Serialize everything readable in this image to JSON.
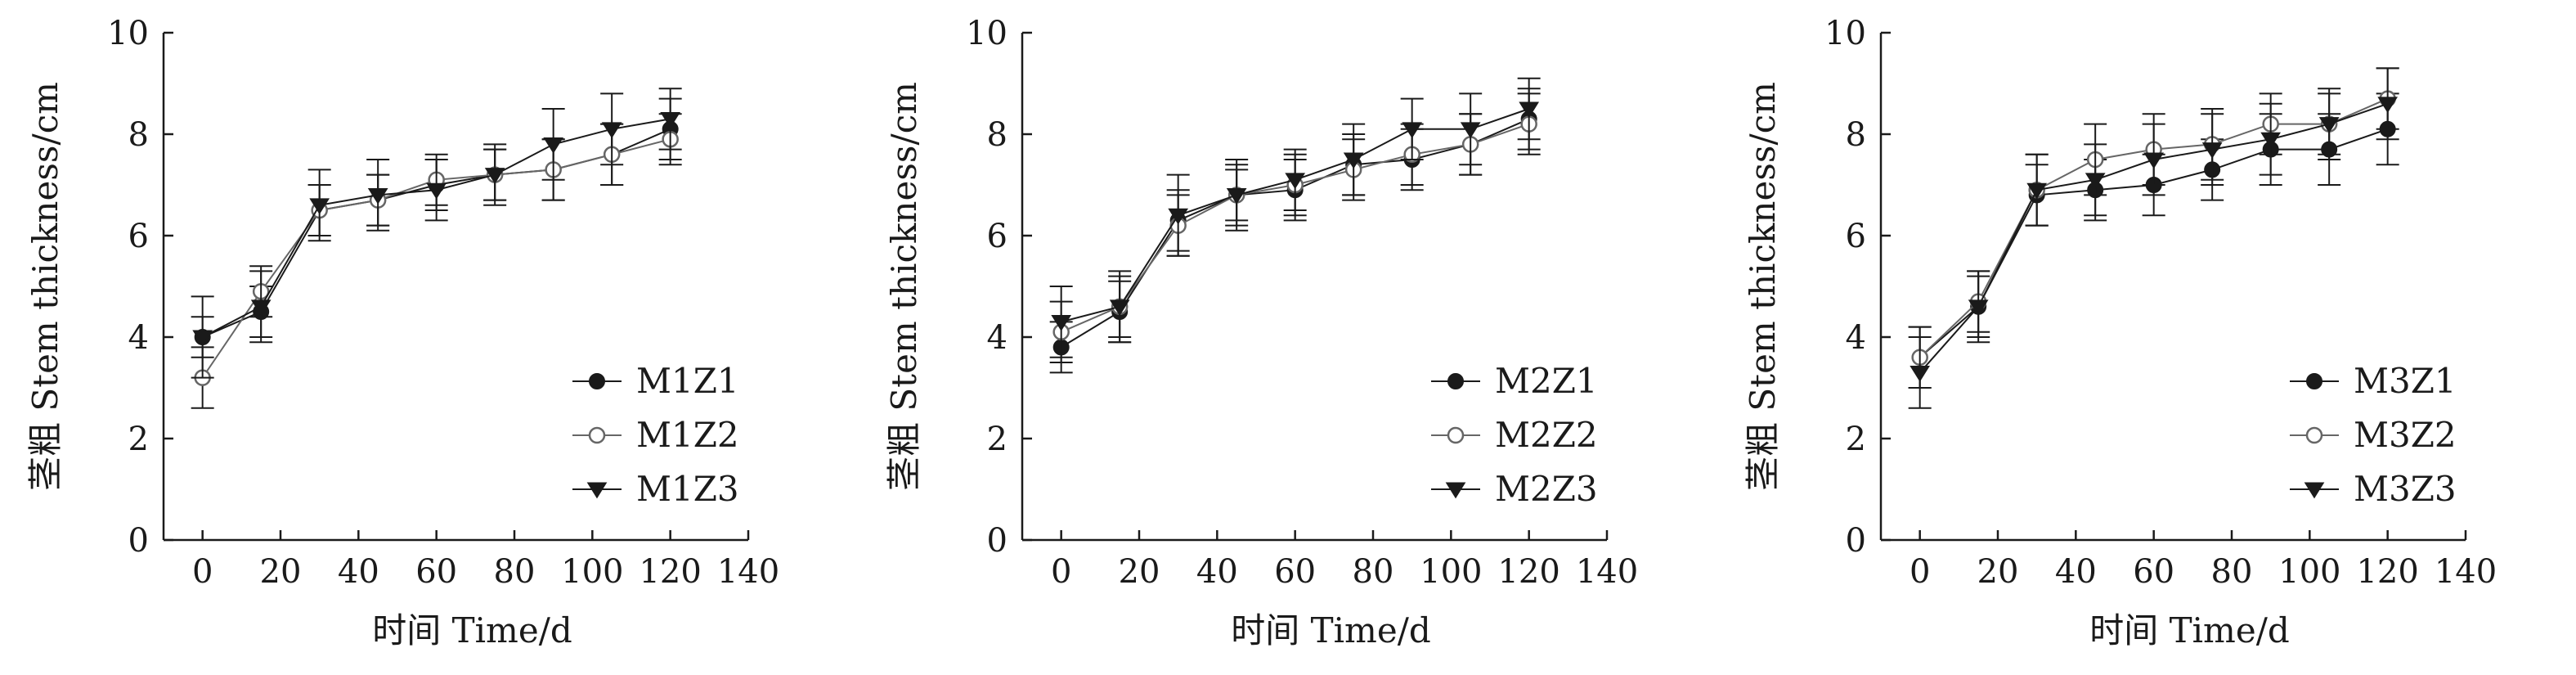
{
  "chart_data": [
    {
      "type": "line",
      "xlabel": "时间 Time/d",
      "ylabel": "茎粗 Stem thickness/cm",
      "xlim": [
        -10,
        140
      ],
      "ylim": [
        0,
        10
      ],
      "xticks": [
        0,
        20,
        40,
        60,
        80,
        100,
        120,
        140
      ],
      "yticks": [
        0,
        2,
        4,
        6,
        8,
        10
      ],
      "xtick_labels": [
        "0",
        "20",
        "40",
        "60",
        "80",
        "100",
        "120",
        "140"
      ],
      "ytick_labels": [
        "0",
        "2",
        "4",
        "6",
        "8",
        "10"
      ],
      "legend": "bottom-right",
      "grid": false,
      "x": [
        0,
        15,
        30,
        45,
        60,
        75,
        90,
        105,
        120
      ],
      "series": [
        {
          "name": "M1Z1",
          "marker": "filled-circle",
          "color": "#1a1a1a",
          "values": [
            4.0,
            4.5,
            6.5,
            6.7,
            7.0,
            7.2,
            7.3,
            7.6,
            8.1
          ],
          "errors": [
            0.4,
            0.5,
            0.5,
            0.5,
            0.5,
            0.5,
            0.6,
            0.6,
            0.6
          ]
        },
        {
          "name": "M1Z2",
          "marker": "open-circle",
          "color": "#666666",
          "values": [
            3.2,
            4.9,
            6.5,
            6.7,
            7.1,
            7.2,
            7.3,
            7.6,
            7.9
          ],
          "errors": [
            0.6,
            0.5,
            0.5,
            0.5,
            0.5,
            0.5,
            0.6,
            0.6,
            0.5
          ]
        },
        {
          "name": "M1Z3",
          "marker": "filled-triangle-down",
          "color": "#1a1a1a",
          "values": [
            4.0,
            4.6,
            6.6,
            6.8,
            6.9,
            7.2,
            7.8,
            8.1,
            8.3
          ],
          "errors": [
            0.8,
            0.7,
            0.7,
            0.7,
            0.6,
            0.6,
            0.7,
            0.7,
            0.6
          ]
        }
      ]
    },
    {
      "type": "line",
      "xlabel": "时间 Time/d",
      "ylabel": "茎粗 Stem thickness/cm",
      "xlim": [
        -10,
        140
      ],
      "ylim": [
        0,
        10
      ],
      "xticks": [
        0,
        20,
        40,
        60,
        80,
        100,
        120,
        140
      ],
      "yticks": [
        0,
        2,
        4,
        6,
        8,
        10
      ],
      "xtick_labels": [
        "0",
        "20",
        "40",
        "60",
        "80",
        "100",
        "120",
        "140"
      ],
      "ytick_labels": [
        "0",
        "2",
        "4",
        "6",
        "8",
        "10"
      ],
      "legend": "bottom-right",
      "grid": false,
      "x": [
        0,
        15,
        30,
        45,
        60,
        75,
        90,
        105,
        120
      ],
      "series": [
        {
          "name": "M2Z1",
          "marker": "filled-circle",
          "color": "#1a1a1a",
          "values": [
            3.8,
            4.5,
            6.3,
            6.8,
            6.9,
            7.4,
            7.5,
            7.8,
            8.3
          ],
          "errors": [
            0.5,
            0.6,
            0.6,
            0.5,
            0.6,
            0.6,
            0.6,
            0.6,
            0.6
          ]
        },
        {
          "name": "M2Z2",
          "marker": "open-circle",
          "color": "#666666",
          "values": [
            4.1,
            4.6,
            6.2,
            6.8,
            7.0,
            7.3,
            7.6,
            7.8,
            8.2
          ],
          "errors": [
            0.6,
            0.6,
            0.6,
            0.6,
            0.6,
            0.6,
            0.6,
            0.6,
            0.6
          ]
        },
        {
          "name": "M2Z3",
          "marker": "filled-triangle-down",
          "color": "#1a1a1a",
          "values": [
            4.3,
            4.6,
            6.4,
            6.8,
            7.1,
            7.5,
            8.1,
            8.1,
            8.5
          ],
          "errors": [
            0.7,
            0.7,
            0.8,
            0.7,
            0.6,
            0.7,
            0.6,
            0.7,
            0.6
          ]
        }
      ]
    },
    {
      "type": "line",
      "xlabel": "时间 Time/d",
      "ylabel": "茎粗 Stem thickness/cm",
      "xlim": [
        -10,
        140
      ],
      "ylim": [
        0,
        10
      ],
      "xticks": [
        0,
        20,
        40,
        60,
        80,
        100,
        120,
        140
      ],
      "yticks": [
        0,
        2,
        4,
        6,
        8,
        10
      ],
      "xtick_labels": [
        "0",
        "20",
        "40",
        "60",
        "80",
        "100",
        "120",
        "140"
      ],
      "ytick_labels": [
        "0",
        "2",
        "4",
        "6",
        "8",
        "10"
      ],
      "legend": "bottom-right",
      "grid": false,
      "x": [
        0,
        15,
        30,
        45,
        60,
        75,
        90,
        105,
        120
      ],
      "series": [
        {
          "name": "M3Z1",
          "marker": "filled-circle",
          "color": "#1a1a1a",
          "values": [
            3.6,
            4.6,
            6.8,
            6.9,
            7.0,
            7.3,
            7.7,
            7.7,
            8.1
          ],
          "errors": [
            0.6,
            0.6,
            0.6,
            0.6,
            0.6,
            0.6,
            0.7,
            0.7,
            0.7
          ]
        },
        {
          "name": "M3Z2",
          "marker": "open-circle",
          "color": "#666666",
          "values": [
            3.6,
            4.7,
            6.9,
            7.5,
            7.7,
            7.8,
            8.2,
            8.2,
            8.7
          ],
          "errors": [
            0.6,
            0.6,
            0.7,
            0.7,
            0.7,
            0.7,
            0.6,
            0.6,
            0.6
          ]
        },
        {
          "name": "M3Z3",
          "marker": "filled-triangle-down",
          "color": "#1a1a1a",
          "values": [
            3.3,
            4.6,
            6.9,
            7.1,
            7.5,
            7.7,
            7.9,
            8.2,
            8.6
          ],
          "errors": [
            0.7,
            0.7,
            0.7,
            0.7,
            0.7,
            0.7,
            0.7,
            0.7,
            0.7
          ]
        }
      ]
    }
  ]
}
